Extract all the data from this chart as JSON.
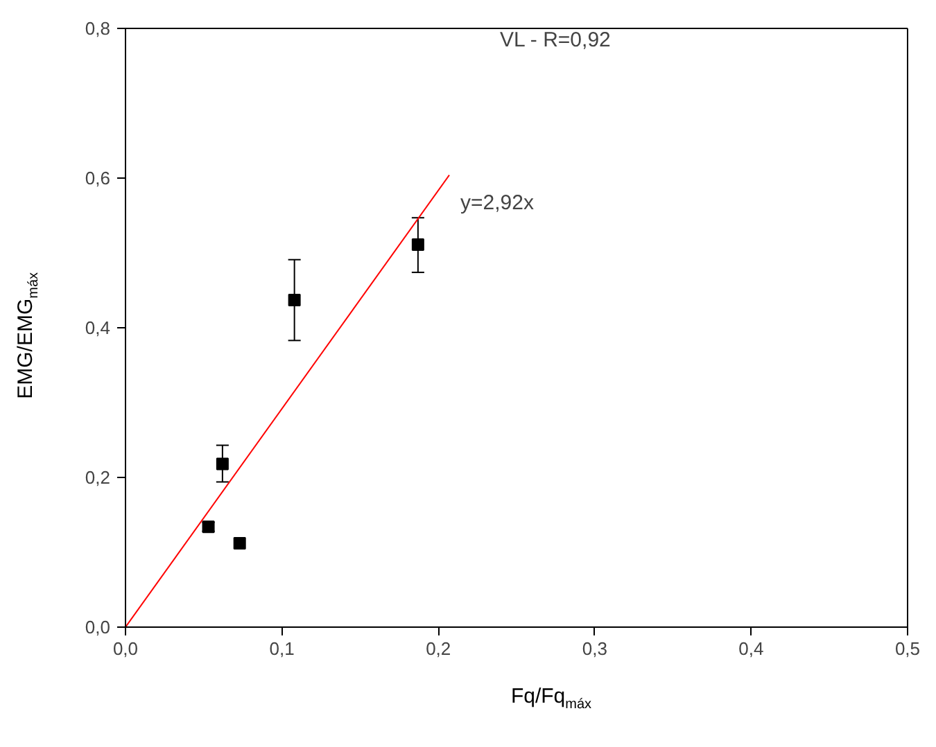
{
  "chart_data": {
    "type": "scatter",
    "title": "VL - R=0,92",
    "xlabel": "Fq/Fq$_{máx}$",
    "ylabel": "EMG/EMG$_{máx}$",
    "xlim": [
      0,
      0.5
    ],
    "ylim": [
      0,
      0.8
    ],
    "xticks": [
      {
        "value": 0,
        "label": "0,0"
      },
      {
        "value": 0.1,
        "label": "0,1"
      },
      {
        "value": 0.2,
        "label": "0,2"
      },
      {
        "value": 0.3,
        "label": "0,3"
      },
      {
        "value": 0.4,
        "label": "0,4"
      },
      {
        "value": 0.5,
        "label": "0,5"
      }
    ],
    "yticks": [
      {
        "value": 0,
        "label": "0,0"
      },
      {
        "value": 0.2,
        "label": "0,2"
      },
      {
        "value": 0.4,
        "label": "0,4"
      },
      {
        "value": 0.6,
        "label": "0,6"
      },
      {
        "value": 0.8,
        "label": "0,8"
      }
    ],
    "grid": false,
    "marker": "square",
    "series": [
      {
        "color": "#000000",
        "x": [
          0.053,
          0.062,
          0.073,
          0.108,
          0.187
        ],
        "values": [
          0.134,
          0.218,
          0.112,
          0.437,
          0.511
        ],
        "errors": [
          [
            0.128,
            0.14
          ],
          [
            0.194,
            0.243
          ],
          null,
          [
            0.383,
            0.491
          ],
          [
            0.474,
            0.547
          ]
        ]
      },
      {
        "type": "line",
        "color": "#ff0000",
        "x": [
          0,
          0.207
        ],
        "values": [
          0,
          0.604
        ],
        "marker": "none",
        "line_style": "solid"
      }
    ],
    "annotations": [
      "y=2,92x"
    ]
  }
}
